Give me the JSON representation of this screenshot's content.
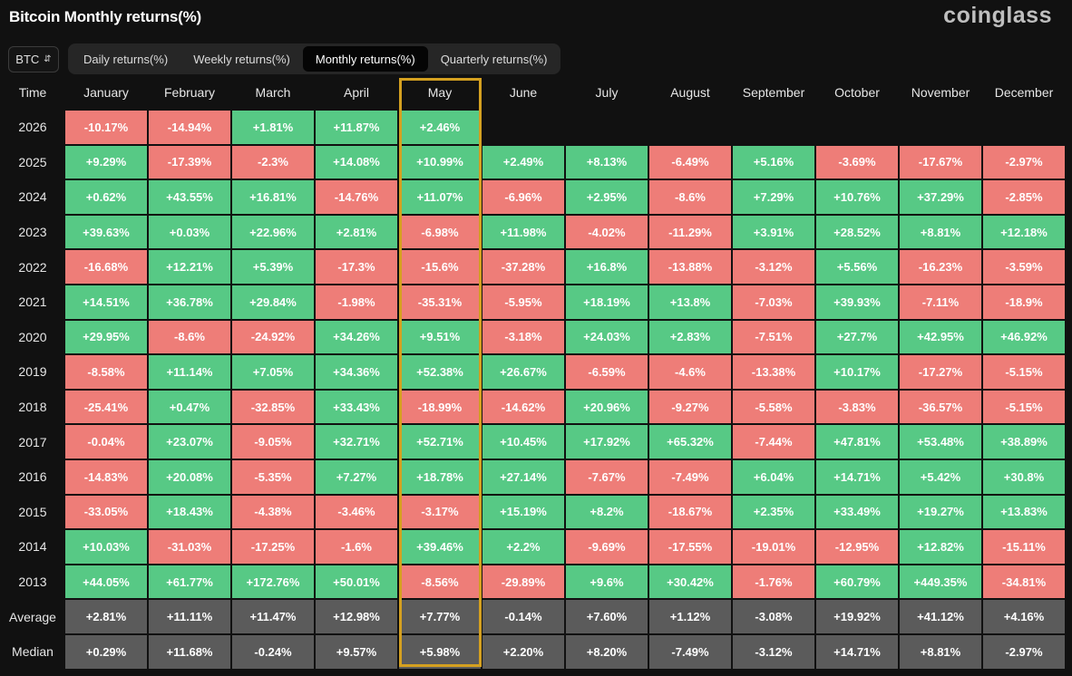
{
  "header": {
    "title": "Bitcoin Monthly returns(%)",
    "brand": "coinglass"
  },
  "asset_selector": {
    "value": "BTC"
  },
  "tabs": [
    {
      "label": "Daily returns(%)",
      "active": false
    },
    {
      "label": "Weekly returns(%)",
      "active": false
    },
    {
      "label": "Monthly returns(%)",
      "active": true
    },
    {
      "label": "Quarterly returns(%)",
      "active": false
    }
  ],
  "colors": {
    "positive": "#57c985",
    "negative": "#ee7d78",
    "stat": "#5b5b5b",
    "highlight": "#d4a020"
  },
  "table": {
    "corner": "Time",
    "highlight_column": "May",
    "months": [
      "January",
      "February",
      "March",
      "April",
      "May",
      "June",
      "July",
      "August",
      "September",
      "October",
      "November",
      "December"
    ],
    "rows": [
      {
        "label": "2026",
        "values": [
          "-10.17%",
          "-14.94%",
          "+1.81%",
          "+11.87%",
          "+2.46%",
          "",
          "",
          "",
          "",
          "",
          "",
          ""
        ]
      },
      {
        "label": "2025",
        "values": [
          "+9.29%",
          "-17.39%",
          "-2.3%",
          "+14.08%",
          "+10.99%",
          "+2.49%",
          "+8.13%",
          "-6.49%",
          "+5.16%",
          "-3.69%",
          "-17.67%",
          "-2.97%"
        ]
      },
      {
        "label": "2024",
        "values": [
          "+0.62%",
          "+43.55%",
          "+16.81%",
          "-14.76%",
          "+11.07%",
          "-6.96%",
          "+2.95%",
          "-8.6%",
          "+7.29%",
          "+10.76%",
          "+37.29%",
          "-2.85%"
        ]
      },
      {
        "label": "2023",
        "values": [
          "+39.63%",
          "+0.03%",
          "+22.96%",
          "+2.81%",
          "-6.98%",
          "+11.98%",
          "-4.02%",
          "-11.29%",
          "+3.91%",
          "+28.52%",
          "+8.81%",
          "+12.18%"
        ]
      },
      {
        "label": "2022",
        "values": [
          "-16.68%",
          "+12.21%",
          "+5.39%",
          "-17.3%",
          "-15.6%",
          "-37.28%",
          "+16.8%",
          "-13.88%",
          "-3.12%",
          "+5.56%",
          "-16.23%",
          "-3.59%"
        ]
      },
      {
        "label": "2021",
        "values": [
          "+14.51%",
          "+36.78%",
          "+29.84%",
          "-1.98%",
          "-35.31%",
          "-5.95%",
          "+18.19%",
          "+13.8%",
          "-7.03%",
          "+39.93%",
          "-7.11%",
          "-18.9%"
        ]
      },
      {
        "label": "2020",
        "values": [
          "+29.95%",
          "-8.6%",
          "-24.92%",
          "+34.26%",
          "+9.51%",
          "-3.18%",
          "+24.03%",
          "+2.83%",
          "-7.51%",
          "+27.7%",
          "+42.95%",
          "+46.92%"
        ]
      },
      {
        "label": "2019",
        "values": [
          "-8.58%",
          "+11.14%",
          "+7.05%",
          "+34.36%",
          "+52.38%",
          "+26.67%",
          "-6.59%",
          "-4.6%",
          "-13.38%",
          "+10.17%",
          "-17.27%",
          "-5.15%"
        ]
      },
      {
        "label": "2018",
        "values": [
          "-25.41%",
          "+0.47%",
          "-32.85%",
          "+33.43%",
          "-18.99%",
          "-14.62%",
          "+20.96%",
          "-9.27%",
          "-5.58%",
          "-3.83%",
          "-36.57%",
          "-5.15%"
        ]
      },
      {
        "label": "2017",
        "values": [
          "-0.04%",
          "+23.07%",
          "-9.05%",
          "+32.71%",
          "+52.71%",
          "+10.45%",
          "+17.92%",
          "+65.32%",
          "-7.44%",
          "+47.81%",
          "+53.48%",
          "+38.89%"
        ]
      },
      {
        "label": "2016",
        "values": [
          "-14.83%",
          "+20.08%",
          "-5.35%",
          "+7.27%",
          "+18.78%",
          "+27.14%",
          "-7.67%",
          "-7.49%",
          "+6.04%",
          "+14.71%",
          "+5.42%",
          "+30.8%"
        ]
      },
      {
        "label": "2015",
        "values": [
          "-33.05%",
          "+18.43%",
          "-4.38%",
          "-3.46%",
          "-3.17%",
          "+15.19%",
          "+8.2%",
          "-18.67%",
          "+2.35%",
          "+33.49%",
          "+19.27%",
          "+13.83%"
        ]
      },
      {
        "label": "2014",
        "values": [
          "+10.03%",
          "-31.03%",
          "-17.25%",
          "-1.6%",
          "+39.46%",
          "+2.2%",
          "-9.69%",
          "-17.55%",
          "-19.01%",
          "-12.95%",
          "+12.82%",
          "-15.11%"
        ]
      },
      {
        "label": "2013",
        "values": [
          "+44.05%",
          "+61.77%",
          "+172.76%",
          "+50.01%",
          "-8.56%",
          "-29.89%",
          "+9.6%",
          "+30.42%",
          "-1.76%",
          "+60.79%",
          "+449.35%",
          "-34.81%"
        ]
      }
    ],
    "stats": [
      {
        "label": "Average",
        "values": [
          "+2.81%",
          "+11.11%",
          "+11.47%",
          "+12.98%",
          "+7.77%",
          "-0.14%",
          "+7.60%",
          "+1.12%",
          "-3.08%",
          "+19.92%",
          "+41.12%",
          "+4.16%"
        ]
      },
      {
        "label": "Median",
        "values": [
          "+0.29%",
          "+11.68%",
          "-0.24%",
          "+9.57%",
          "+5.98%",
          "+2.20%",
          "+8.20%",
          "-7.49%",
          "-3.12%",
          "+14.71%",
          "+8.81%",
          "-2.97%"
        ]
      }
    ]
  }
}
